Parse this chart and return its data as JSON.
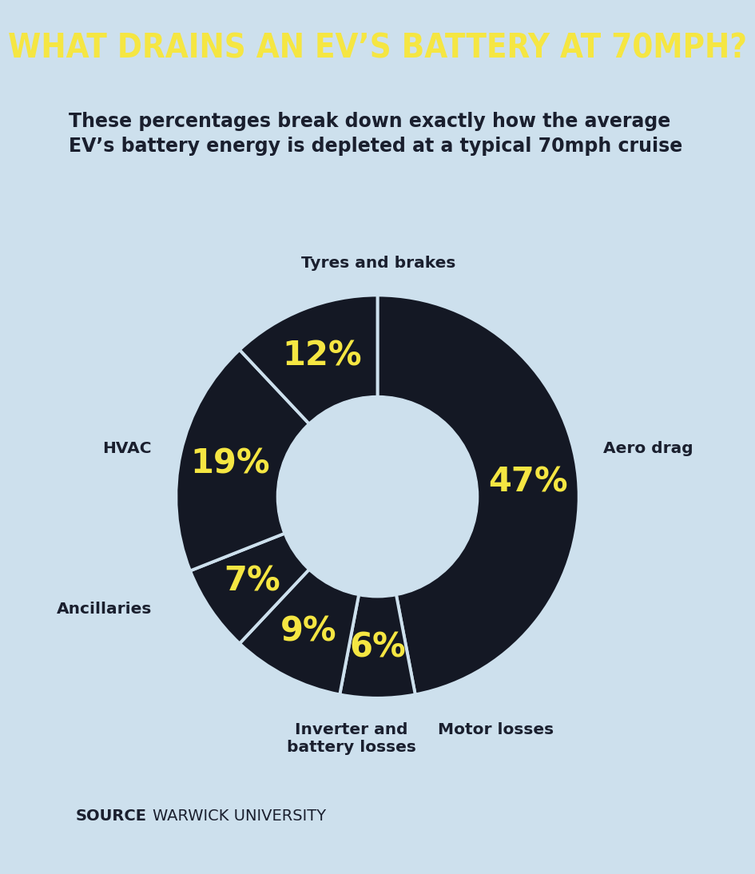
{
  "title": "WHAT DRAINS AN EV’S BATTERY AT 70MPH?",
  "subtitle": "These percentages break down exactly how the average\nEV’s battery energy is depleted at a typical 70mph cruise",
  "background_color": "#cde0ed",
  "title_bg_color": "#161c28",
  "title_color": "#f5e642",
  "subtitle_color": "#1a1f2e",
  "pie_color": "#141824",
  "wedge_gap_color": "#cde0ed",
  "slices": [
    {
      "label": "Aero drag",
      "value": 47
    },
    {
      "label": "Motor losses",
      "value": 6
    },
    {
      "label": "Inverter and\nbattery losses",
      "value": 9
    },
    {
      "label": "Ancillaries",
      "value": 7
    },
    {
      "label": "HVAC",
      "value": 19
    },
    {
      "label": "Tyres and brakes",
      "value": 12
    }
  ],
  "pct_color": "#f5e642",
  "label_color": "#1a1f2e",
  "pct_fontsize": 30,
  "label_fontsize": 14.5,
  "donut_ratio": 0.5,
  "title_fontsize": 30,
  "subtitle_fontsize": 17
}
